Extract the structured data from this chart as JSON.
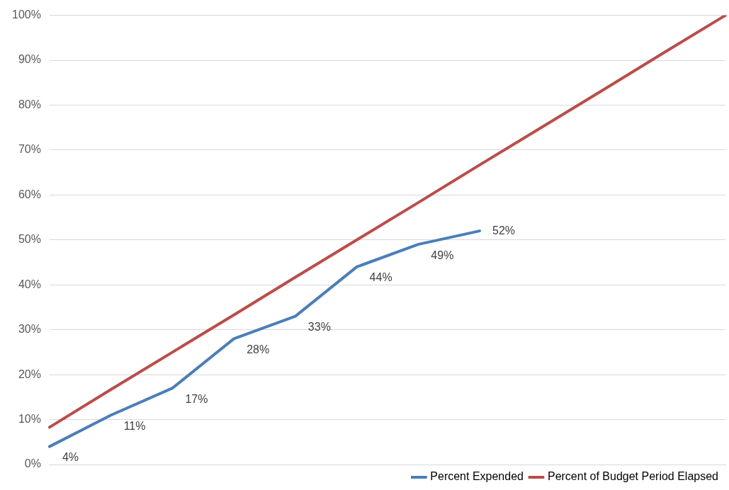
{
  "chart_data": {
    "type": "line",
    "categories": [
      null,
      null,
      null,
      null,
      null,
      null,
      null,
      null,
      null,
      null,
      null,
      null
    ],
    "series": [
      {
        "name": "Percent Expended",
        "color": "#4a7ebb",
        "values": [
          4,
          11,
          17,
          28,
          33,
          44,
          49,
          52,
          null,
          null,
          null,
          null
        ],
        "value_labels": [
          "4%",
          "11%",
          "17%",
          "28%",
          "33%",
          "44%",
          "49%",
          "52%",
          null,
          null,
          null,
          null
        ]
      },
      {
        "name": "Percent of Budget Period Elapsed",
        "color": "#be4b48",
        "values": [
          8.3,
          16.7,
          25,
          33.3,
          41.7,
          50,
          58.3,
          66.7,
          75,
          83.3,
          91.7,
          100
        ]
      }
    ],
    "ylim": [
      0,
      100
    ],
    "yticks": [
      {
        "value": 0,
        "label": "0%"
      },
      {
        "value": 10,
        "label": "10%"
      },
      {
        "value": 20,
        "label": "20%"
      },
      {
        "value": 30,
        "label": "30%"
      },
      {
        "value": 40,
        "label": "40%"
      },
      {
        "value": 50,
        "label": "50%"
      },
      {
        "value": 60,
        "label": "60%"
      },
      {
        "value": 70,
        "label": "70%"
      },
      {
        "value": 80,
        "label": "80%"
      },
      {
        "value": 90,
        "label": "90%"
      },
      {
        "value": 100,
        "label": "100%"
      }
    ],
    "grid": "y",
    "legend": "bottom right",
    "tick_labels": "y",
    "marker": "none",
    "line_style": "solid"
  }
}
